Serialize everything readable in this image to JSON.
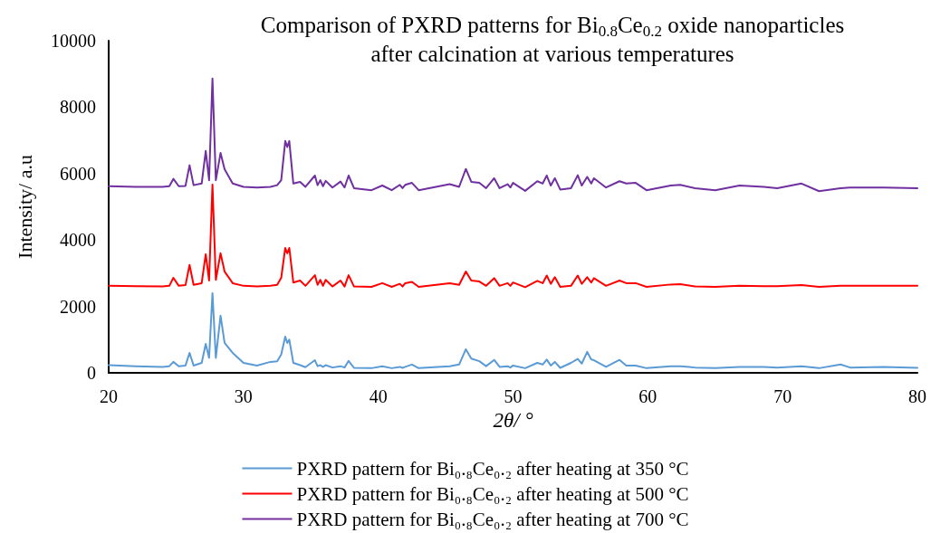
{
  "chart_data": {
    "type": "line",
    "title": "Comparison of PXRD patterns for Bi$_{0.8}$Ce$_{0.2}$ oxide nanoparticles\nafter calcination at various temperatures",
    "xlabel": "2θ/ °",
    "ylabel": "Intensity/ a.u",
    "x": [
      20,
      22,
      24,
      24.5,
      24.8,
      25.2,
      25.7,
      26.0,
      26.3,
      26.9,
      27.2,
      27.45,
      27.7,
      27.95,
      28.3,
      28.6,
      29.2,
      30,
      31,
      32,
      32.5,
      32.8,
      33.1,
      33.25,
      33.4,
      33.7,
      34.2,
      34.6,
      35.3,
      35.5,
      35.7,
      35.9,
      36.1,
      36.6,
      37.2,
      37.5,
      37.8,
      38.2,
      39.5,
      40.3,
      41,
      41.6,
      41.8,
      42.0,
      42.5,
      43,
      45.3,
      46,
      46.5,
      46.9,
      47.5,
      48,
      48.6,
      49,
      49.6,
      49.8,
      50.0,
      50.9,
      51.8,
      52.2,
      52.5,
      52.8,
      53.1,
      53.5,
      54.3,
      54.8,
      55.1,
      55.5,
      55.8,
      56.0,
      56.9,
      57.9,
      58.4,
      59.1,
      59.9,
      61.7,
      62.4,
      63.5,
      65,
      66.8,
      68.6,
      69.6,
      71.4,
      72.7,
      74.3,
      75,
      77.5,
      80
    ],
    "series": [
      {
        "name": "PXRD pattern for Bi₀.₈Ce₀.₂ after heating at 350 °C",
        "color": "#5b9bd5",
        "values": [
          230,
          200,
          180,
          200,
          330,
          200,
          220,
          600,
          220,
          300,
          870,
          450,
          2400,
          450,
          1720,
          900,
          600,
          300,
          220,
          330,
          350,
          550,
          1090,
          900,
          1000,
          300,
          230,
          170,
          380,
          200,
          230,
          180,
          230,
          160,
          200,
          160,
          360,
          150,
          140,
          200,
          140,
          180,
          150,
          180,
          250,
          140,
          200,
          250,
          710,
          430,
          350,
          200,
          390,
          180,
          200,
          160,
          220,
          140,
          300,
          250,
          400,
          220,
          330,
          150,
          300,
          420,
          280,
          630,
          400,
          380,
          180,
          390,
          220,
          220,
          140,
          200,
          200,
          160,
          140,
          180,
          180,
          160,
          200,
          140,
          250,
          160,
          180,
          150
        ]
      },
      {
        "name": "PXRD pattern for Bi₀.₈Ce₀.₂ after heating at 500 °C",
        "color": "#ff0000",
        "values": [
          2620,
          2610,
          2600,
          2620,
          2860,
          2620,
          2640,
          3250,
          2650,
          2700,
          3570,
          2780,
          5670,
          2800,
          3600,
          3050,
          2700,
          2620,
          2600,
          2620,
          2650,
          2860,
          3760,
          3600,
          3760,
          2720,
          2780,
          2620,
          2940,
          2650,
          2800,
          2620,
          2800,
          2600,
          2780,
          2600,
          2940,
          2600,
          2590,
          2700,
          2590,
          2680,
          2600,
          2700,
          2740,
          2590,
          2700,
          2650,
          3050,
          2780,
          2750,
          2620,
          2850,
          2620,
          2700,
          2620,
          2720,
          2580,
          2770,
          2700,
          2930,
          2680,
          2880,
          2590,
          2620,
          2930,
          2680,
          2880,
          2720,
          2850,
          2620,
          2780,
          2700,
          2700,
          2590,
          2660,
          2670,
          2600,
          2590,
          2620,
          2610,
          2610,
          2640,
          2590,
          2620,
          2620,
          2620,
          2620
        ]
      },
      {
        "name": "PXRD pattern for Bi₀.₈Ce₀.₂ after heating at 700 °C",
        "color": "#7030a0",
        "values": [
          5620,
          5600,
          5600,
          5620,
          5840,
          5620,
          5630,
          6250,
          5650,
          5700,
          6680,
          5800,
          8860,
          5800,
          6620,
          6130,
          5700,
          5600,
          5580,
          5600,
          5650,
          5800,
          6980,
          6800,
          6980,
          5700,
          5750,
          5600,
          5940,
          5650,
          5800,
          5620,
          5780,
          5580,
          5760,
          5580,
          5940,
          5560,
          5500,
          5640,
          5500,
          5660,
          5560,
          5660,
          5720,
          5500,
          5680,
          5600,
          6140,
          5750,
          5720,
          5560,
          5860,
          5560,
          5680,
          5580,
          5720,
          5480,
          5770,
          5700,
          5940,
          5640,
          5860,
          5520,
          5560,
          5950,
          5640,
          5900,
          5700,
          5860,
          5580,
          5770,
          5700,
          5720,
          5500,
          5640,
          5660,
          5560,
          5500,
          5640,
          5600,
          5560,
          5700,
          5470,
          5560,
          5580,
          5580,
          5560
        ]
      }
    ],
    "xlim": [
      20,
      80
    ],
    "xticks": [
      20,
      30,
      40,
      50,
      60,
      70,
      80
    ],
    "ylim": [
      0,
      10000
    ],
    "yticks": [
      0,
      2000,
      4000,
      6000,
      8000,
      10000
    ],
    "grid": false,
    "legend": "bottom",
    "marker": "none",
    "line_style": "solid"
  }
}
